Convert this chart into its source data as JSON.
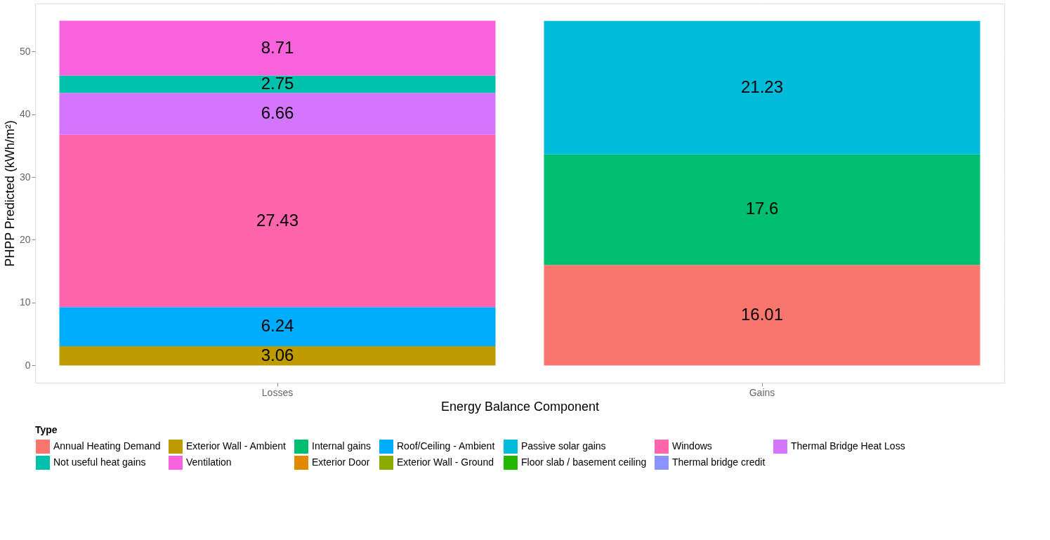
{
  "chart_data": {
    "type": "bar",
    "stacked": true,
    "xlabel": "Energy Balance Component",
    "ylabel": "PHPP Predicted (kWh/m²)",
    "legend_title": "Type",
    "categories": [
      "Losses",
      "Gains"
    ],
    "series": [
      {
        "name": "Annual Heating Demand",
        "color": "#f8766d",
        "values": [
          null,
          16.01
        ]
      },
      {
        "name": "Exterior Wall - Ambient",
        "color": "#be9c00",
        "values": [
          3.06,
          null
        ]
      },
      {
        "name": "Internal gains",
        "color": "#00be70",
        "values": [
          null,
          17.6
        ]
      },
      {
        "name": "Roof/Ceiling - Ambient",
        "color": "#00acfc",
        "values": [
          6.24,
          null
        ]
      },
      {
        "name": "Passive solar gains",
        "color": "#00bbda",
        "values": [
          null,
          21.23
        ]
      },
      {
        "name": "Windows",
        "color": "#ff65ac",
        "values": [
          27.43,
          null
        ]
      },
      {
        "name": "Thermal Bridge Heat Loss",
        "color": "#d575fe",
        "values": [
          6.66,
          null
        ]
      },
      {
        "name": "Not useful heat gains",
        "color": "#00c1ab",
        "values": [
          2.75,
          null
        ]
      },
      {
        "name": "Ventilation",
        "color": "#f962dd",
        "values": [
          8.71,
          null
        ]
      },
      {
        "name": "Exterior Door",
        "color": "#e18a00",
        "values": [
          null,
          null
        ]
      },
      {
        "name": "Exterior Wall - Ground",
        "color": "#8cab00",
        "values": [
          null,
          null
        ]
      },
      {
        "name": "Floor slab / basement ceiling",
        "color": "#24b700",
        "values": [
          null,
          null
        ]
      },
      {
        "name": "Thermal bridge credit",
        "color": "#8b93ff",
        "values": [
          null,
          null
        ]
      }
    ],
    "ylim": [
      -2.74,
      57.6
    ],
    "yticks": [
      0,
      10,
      20,
      30,
      40,
      50
    ],
    "grid": true,
    "legend": "bottom",
    "data_labels": true
  }
}
